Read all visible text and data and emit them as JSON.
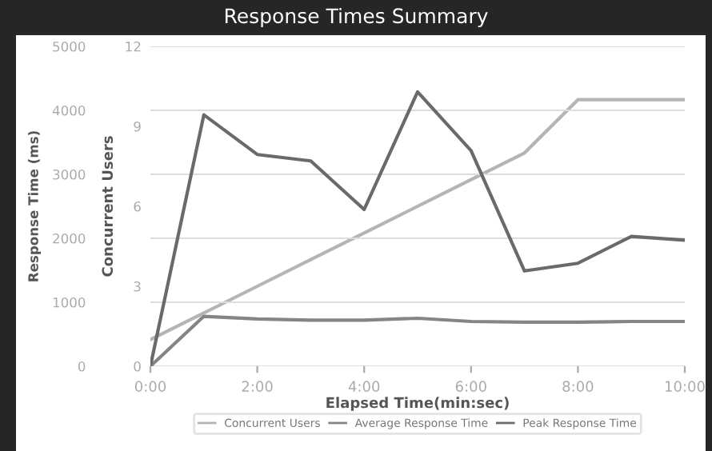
{
  "chart_data": {
    "type": "line",
    "title": "Response Times Summary",
    "xlabel": "Elapsed Time(min:sec)",
    "ylabel": "Response Time (ms)",
    "y2label": "Concurrent Users",
    "x": [
      0,
      1,
      2,
      3,
      4,
      5,
      6,
      7,
      8,
      9,
      10
    ],
    "series": [
      {
        "name": "Concurrent Users",
        "color": "#b4b4b4",
        "axis": "y2",
        "values": [
          1,
          2,
          3,
          4,
          5,
          6,
          7,
          8,
          10,
          10,
          10
        ]
      },
      {
        "name": "Average Response Time",
        "color": "#858585",
        "values": [
          0,
          780,
          740,
          720,
          720,
          750,
          700,
          690,
          690,
          700,
          700
        ]
      },
      {
        "name": "Peak Response Time",
        "color": "#6a6a6a",
        "values": [
          0,
          3930,
          3310,
          3210,
          2450,
          4290,
          3370,
          1490,
          1610,
          2030,
          1970
        ]
      }
    ],
    "xlim": [
      0,
      10
    ],
    "xticks": [
      {
        "value": 0,
        "label": "0:00"
      },
      {
        "value": 2,
        "label": "2:00"
      },
      {
        "value": 4,
        "label": "4:00"
      },
      {
        "value": 6,
        "label": "6:00"
      },
      {
        "value": 8,
        "label": "8:00"
      },
      {
        "value": 10,
        "label": "10:00"
      }
    ],
    "ylim": [
      0,
      5000
    ],
    "yticks": [
      0,
      1000,
      2000,
      3000,
      4000,
      5000
    ],
    "y2lim": [
      0,
      12
    ],
    "y2ticks": [
      0,
      3,
      6,
      9,
      12
    ],
    "grid": "y",
    "legend": "bottom",
    "marker": "none",
    "line_style": "solid"
  }
}
